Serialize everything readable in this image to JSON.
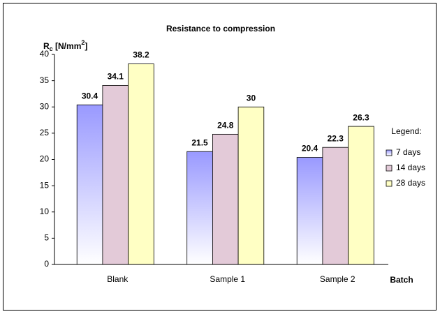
{
  "chart_data": {
    "type": "bar",
    "title": "Resistance to compression",
    "y_label": [
      "R",
      "c",
      " [N/mm",
      "2",
      "]"
    ],
    "x_label": "Batch",
    "legend_title": "Legend:",
    "categories": [
      "Blank",
      "Sample 1",
      "Sample 2"
    ],
    "series": [
      {
        "name": "7 days",
        "color": "#9999ff",
        "gradient": true,
        "values": [
          30.4,
          21.5,
          20.4
        ]
      },
      {
        "name": "14 days",
        "color": "#e3cad8",
        "gradient": false,
        "values": [
          34.1,
          24.8,
          22.3
        ]
      },
      {
        "name": "28 days",
        "color": "#ffffc4",
        "gradient": false,
        "values": [
          38.2,
          30,
          26.3
        ]
      }
    ],
    "ylim": [
      0,
      40
    ],
    "yticks": [
      0,
      5,
      10,
      15,
      20,
      25,
      30,
      35,
      40
    ],
    "grid": false,
    "legend": "right"
  }
}
